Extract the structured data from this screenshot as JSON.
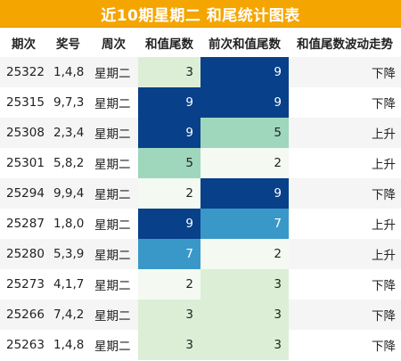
{
  "title": "近10期星期二 和尾统计图表",
  "headers": [
    "期次",
    "奖号",
    "周次",
    "和值尾数",
    "前次和值尾数",
    "和值尾数波动走势"
  ],
  "rows": [
    {
      "period": "25322",
      "numbers": "1,4,8",
      "weekday": "星期二",
      "sum_tail": "3",
      "prev_tail": "9",
      "trend": "下降"
    },
    {
      "period": "25315",
      "numbers": "9,7,3",
      "weekday": "星期二",
      "sum_tail": "9",
      "prev_tail": "9",
      "trend": "下降"
    },
    {
      "period": "25308",
      "numbers": "2,3,4",
      "weekday": "星期二",
      "sum_tail": "9",
      "prev_tail": "5",
      "trend": "上升"
    },
    {
      "period": "25301",
      "numbers": "5,8,2",
      "weekday": "星期二",
      "sum_tail": "5",
      "prev_tail": "2",
      "trend": "上升"
    },
    {
      "period": "25294",
      "numbers": "9,9,4",
      "weekday": "星期二",
      "sum_tail": "2",
      "prev_tail": "9",
      "trend": "下降"
    },
    {
      "period": "25287",
      "numbers": "1,8,0",
      "weekday": "星期二",
      "sum_tail": "9",
      "prev_tail": "7",
      "trend": "上升"
    },
    {
      "period": "25280",
      "numbers": "5,3,9",
      "weekday": "星期二",
      "sum_tail": "7",
      "prev_tail": "2",
      "trend": "上升"
    },
    {
      "period": "25273",
      "numbers": "4,1,7",
      "weekday": "星期二",
      "sum_tail": "2",
      "prev_tail": "3",
      "trend": "下降"
    },
    {
      "period": "25266",
      "numbers": "7,4,2",
      "weekday": "星期二",
      "sum_tail": "3",
      "prev_tail": "3",
      "trend": "下降"
    },
    {
      "period": "25263",
      "numbers": "1,4,8",
      "weekday": "星期二",
      "sum_tail": "3",
      "prev_tail": "3",
      "trend": "下降"
    }
  ],
  "colors": {
    "title_bg": "#f5a500",
    "heat": {
      "2": "#f4faf2",
      "3": "#dcefd6",
      "5": "#9ed7bc",
      "7": "#3a98c9",
      "9": "#08408a"
    }
  }
}
